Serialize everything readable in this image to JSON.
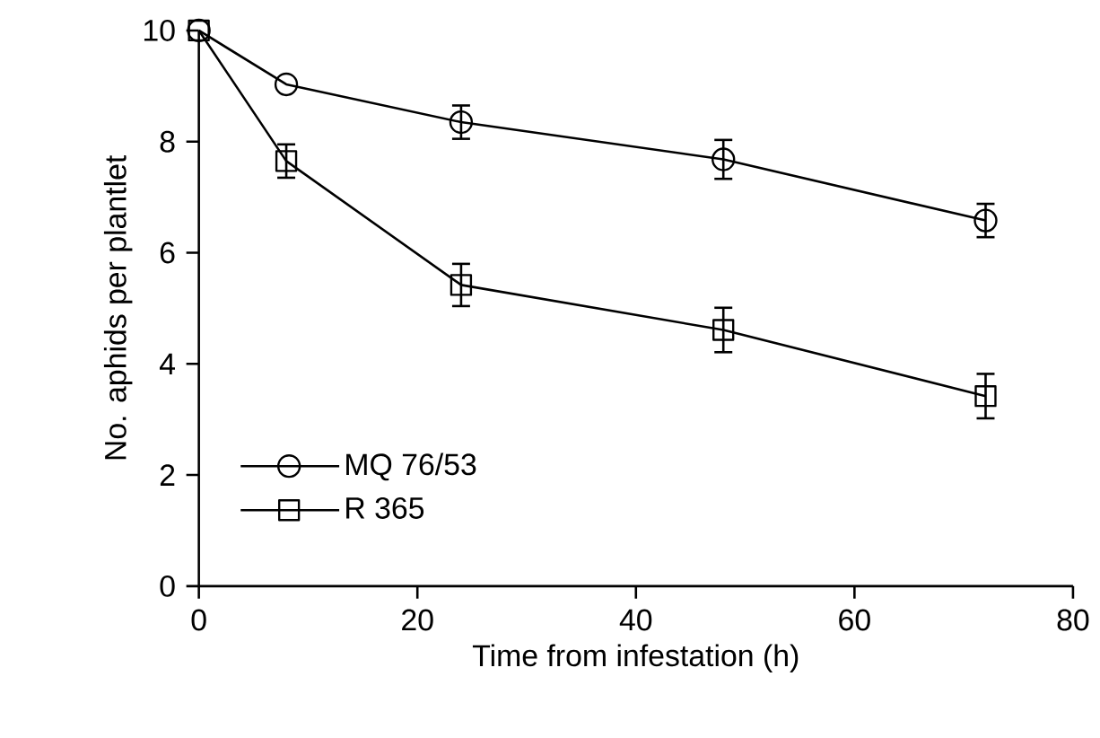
{
  "chart_data": {
    "type": "line",
    "xlabel": "Time from infestation (h)",
    "ylabel": "No. aphids per plantlet",
    "xlim": [
      0,
      80
    ],
    "xticks": [
      0,
      20,
      40,
      60,
      80
    ],
    "ylim": [
      0,
      10
    ],
    "yticks": [
      0,
      2,
      4,
      6,
      8,
      10
    ],
    "grid": false,
    "legend": "bottom left",
    "line_style": "solid",
    "series": [
      {
        "name": "MQ 76/53",
        "color": "#000000",
        "marker": "circle",
        "x": [
          0,
          8,
          24,
          48,
          72
        ],
        "values": [
          10,
          9.03,
          8.35,
          7.68,
          6.58
        ],
        "errors": [
          null,
          null,
          0.3,
          0.35,
          0.3
        ]
      },
      {
        "name": "R 365",
        "color": "#000000",
        "marker": "square",
        "x": [
          0,
          8,
          24,
          48,
          72
        ],
        "values": [
          10,
          7.65,
          5.42,
          4.61,
          3.42
        ],
        "errors": [
          null,
          0.3,
          0.38,
          0.4,
          0.4
        ]
      }
    ]
  }
}
